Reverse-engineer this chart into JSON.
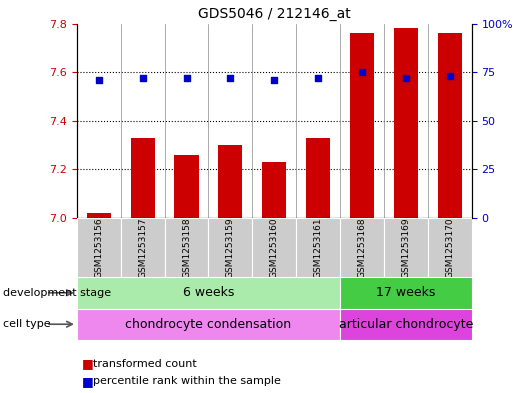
{
  "title": "GDS5046 / 212146_at",
  "samples": [
    "GSM1253156",
    "GSM1253157",
    "GSM1253158",
    "GSM1253159",
    "GSM1253160",
    "GSM1253161",
    "GSM1253168",
    "GSM1253169",
    "GSM1253170"
  ],
  "transformed_counts": [
    7.02,
    7.33,
    7.26,
    7.3,
    7.23,
    7.33,
    7.76,
    7.78,
    7.76
  ],
  "percentile_ranks": [
    71,
    72,
    72,
    72,
    71,
    72,
    75,
    72,
    73
  ],
  "ylim_left": [
    7.0,
    7.8
  ],
  "ylim_right": [
    0,
    100
  ],
  "yticks_left": [
    7.0,
    7.2,
    7.4,
    7.6,
    7.8
  ],
  "yticks_right": [
    0,
    25,
    50,
    75,
    100
  ],
  "ytick_labels_right": [
    "0",
    "25",
    "50",
    "75",
    "100%"
  ],
  "bar_color": "#cc0000",
  "dot_color": "#0000cc",
  "bar_width": 0.55,
  "groups": [
    {
      "label": "6 weeks",
      "start": 0,
      "end": 6,
      "color": "#aaeaaa"
    },
    {
      "label": "17 weeks",
      "start": 6,
      "end": 9,
      "color": "#44cc44"
    }
  ],
  "cell_types": [
    {
      "label": "chondrocyte condensation",
      "start": 0,
      "end": 6,
      "color": "#ee88ee"
    },
    {
      "label": "articular chondrocyte",
      "start": 6,
      "end": 9,
      "color": "#dd44dd"
    }
  ],
  "dev_stage_label": "development stage",
  "cell_type_label": "cell type",
  "legend_bar_label": "transformed count",
  "legend_dot_label": "percentile rank within the sample",
  "background_color": "#ffffff",
  "plot_bg_color": "#ffffff",
  "left_axis_color": "#cc0000",
  "right_axis_color": "#0000cc",
  "xtick_bg_color": "#cccccc",
  "grid_dotted_levels": [
    7.2,
    7.4,
    7.6
  ]
}
